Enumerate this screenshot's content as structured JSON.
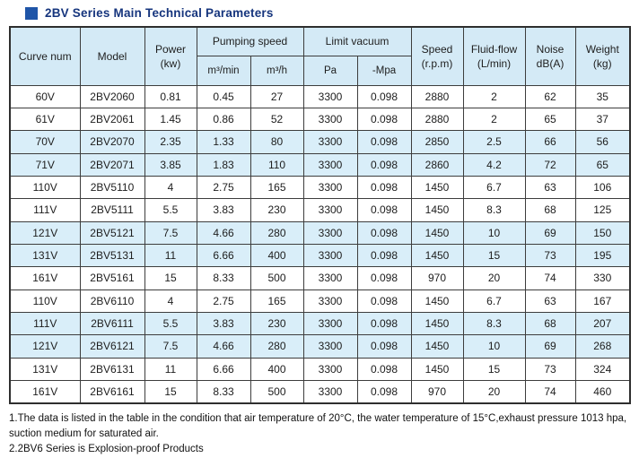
{
  "title": "2BV Series Main Technical Parameters",
  "colors": {
    "title_navy": "#16357d",
    "bullet_blue": "#1f55a8",
    "header_bg": "#d4eaf6",
    "band_bg": "#d9eef9",
    "border": "#3d3d3d"
  },
  "table": {
    "header": {
      "curve": "Curve num",
      "model": "Model",
      "power_l1": "Power",
      "power_l2": "(kw)",
      "pumping": "Pumping speed",
      "m3min": "m³/min",
      "m3h": "m³/h",
      "limit": "Limit vacuum",
      "pa": "Pa",
      "mpa": "-Mpa",
      "speed_l1": "Speed",
      "speed_l2": "(r.p.m)",
      "fluid_l1": "Fluid-flow",
      "fluid_l2": "(L/min)",
      "noise_l1": "Noise",
      "noise_l2": "dB(A)",
      "weight_l1": "Weight",
      "weight_l2": "(kg)"
    },
    "rows": [
      {
        "shaded": false,
        "cells": [
          "60V",
          "2BV2060",
          "0.81",
          "0.45",
          "27",
          "3300",
          "0.098",
          "2880",
          "2",
          "62",
          "35"
        ]
      },
      {
        "shaded": false,
        "cells": [
          "61V",
          "2BV2061",
          "1.45",
          "0.86",
          "52",
          "3300",
          "0.098",
          "2880",
          "2",
          "65",
          "37"
        ]
      },
      {
        "shaded": true,
        "cells": [
          "70V",
          "2BV2070",
          "2.35",
          "1.33",
          "80",
          "3300",
          "0.098",
          "2850",
          "2.5",
          "66",
          "56"
        ]
      },
      {
        "shaded": true,
        "cells": [
          "71V",
          "2BV2071",
          "3.85",
          "1.83",
          "110",
          "3300",
          "0.098",
          "2860",
          "4.2",
          "72",
          "65"
        ]
      },
      {
        "shaded": false,
        "cells": [
          "110V",
          "2BV5110",
          "4",
          "2.75",
          "165",
          "3300",
          "0.098",
          "1450",
          "6.7",
          "63",
          "106"
        ]
      },
      {
        "shaded": false,
        "cells": [
          "111V",
          "2BV5111",
          "5.5",
          "3.83",
          "230",
          "3300",
          "0.098",
          "1450",
          "8.3",
          "68",
          "125"
        ]
      },
      {
        "shaded": true,
        "cells": [
          "121V",
          "2BV5121",
          "7.5",
          "4.66",
          "280",
          "3300",
          "0.098",
          "1450",
          "10",
          "69",
          "150"
        ]
      },
      {
        "shaded": true,
        "cells": [
          "131V",
          "2BV5131",
          "11",
          "6.66",
          "400",
          "3300",
          "0.098",
          "1450",
          "15",
          "73",
          "195"
        ]
      },
      {
        "shaded": false,
        "cells": [
          "161V",
          "2BV5161",
          "15",
          "8.33",
          "500",
          "3300",
          "0.098",
          "970",
          "20",
          "74",
          "330"
        ]
      },
      {
        "shaded": false,
        "cells": [
          "110V",
          "2BV6110",
          "4",
          "2.75",
          "165",
          "3300",
          "0.098",
          "1450",
          "6.7",
          "63",
          "167"
        ]
      },
      {
        "shaded": true,
        "cells": [
          "111V",
          "2BV6111",
          "5.5",
          "3.83",
          "230",
          "3300",
          "0.098",
          "1450",
          "8.3",
          "68",
          "207"
        ]
      },
      {
        "shaded": true,
        "cells": [
          "121V",
          "2BV6121",
          "7.5",
          "4.66",
          "280",
          "3300",
          "0.098",
          "1450",
          "10",
          "69",
          "268"
        ]
      },
      {
        "shaded": false,
        "cells": [
          "131V",
          "2BV6131",
          "11",
          "6.66",
          "400",
          "3300",
          "0.098",
          "1450",
          "15",
          "73",
          "324"
        ]
      },
      {
        "shaded": false,
        "cells": [
          "161V",
          "2BV6161",
          "15",
          "8.33",
          "500",
          "3300",
          "0.098",
          "970",
          "20",
          "74",
          "460"
        ]
      }
    ]
  },
  "notes": [
    "1.The data is listed in the table in the condition that air temperature of 20°C, the water temperature of 15°C,exhaust pressure 1013 hpa, suction medium for saturated air.",
    "2.2BV6 Series is Explosion-proof Products"
  ]
}
